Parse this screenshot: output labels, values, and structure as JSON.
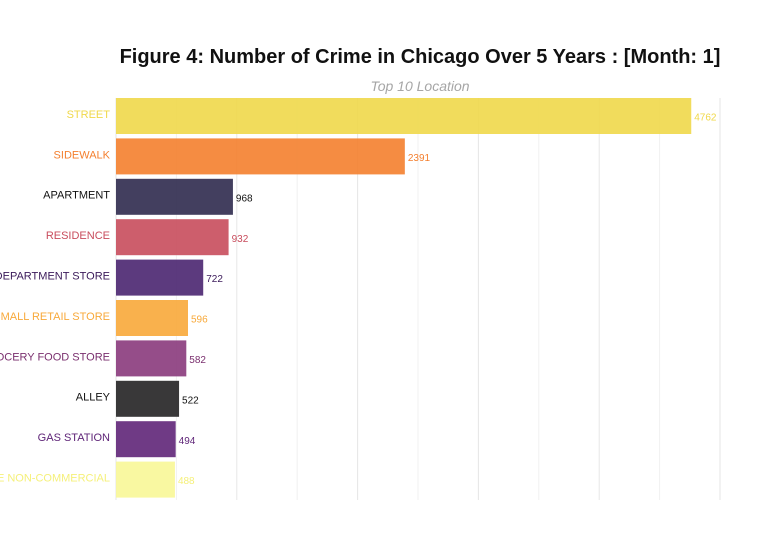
{
  "title": "Figure 4: Number of Crime in Chicago Over 5 Years : [Month: 1]",
  "subtitle": "Top 10 Location",
  "chart_data": {
    "type": "bar",
    "orientation": "horizontal",
    "title": "Figure 4: Number of Crime in Chicago Over 5 Years : [Month: 1]",
    "subtitle": "Top 10 Location",
    "categories": [
      "STREET",
      "SIDEWALK",
      "APARTMENT",
      "RESIDENCE",
      "DEPARTMENT STORE",
      "SMALL RETAIL STORE",
      "GROCERY FOOD STORE",
      "ALLEY",
      "GAS STATION",
      "VEHICLE NON-COMMERCIAL"
    ],
    "values": [
      4762,
      2391,
      968,
      932,
      722,
      596,
      582,
      522,
      494,
      488
    ],
    "colors": [
      "#f0d84a",
      "#f47f2e",
      "#2f2a4e",
      "#c84c5c",
      "#4a2570",
      "#f8a93a",
      "#8a3a7c",
      "#232224",
      "#5f2578",
      "#f8f797"
    ],
    "label_colors": [
      "#f0d84a",
      "#f47f2e",
      "#111111",
      "#c84c5c",
      "#3b1a5a",
      "#f8a93a",
      "#7a2f6e",
      "#111111",
      "#5f2578",
      "#f5f07a"
    ],
    "xlim": [
      0,
      5000
    ],
    "grid": true,
    "legend": "none"
  }
}
